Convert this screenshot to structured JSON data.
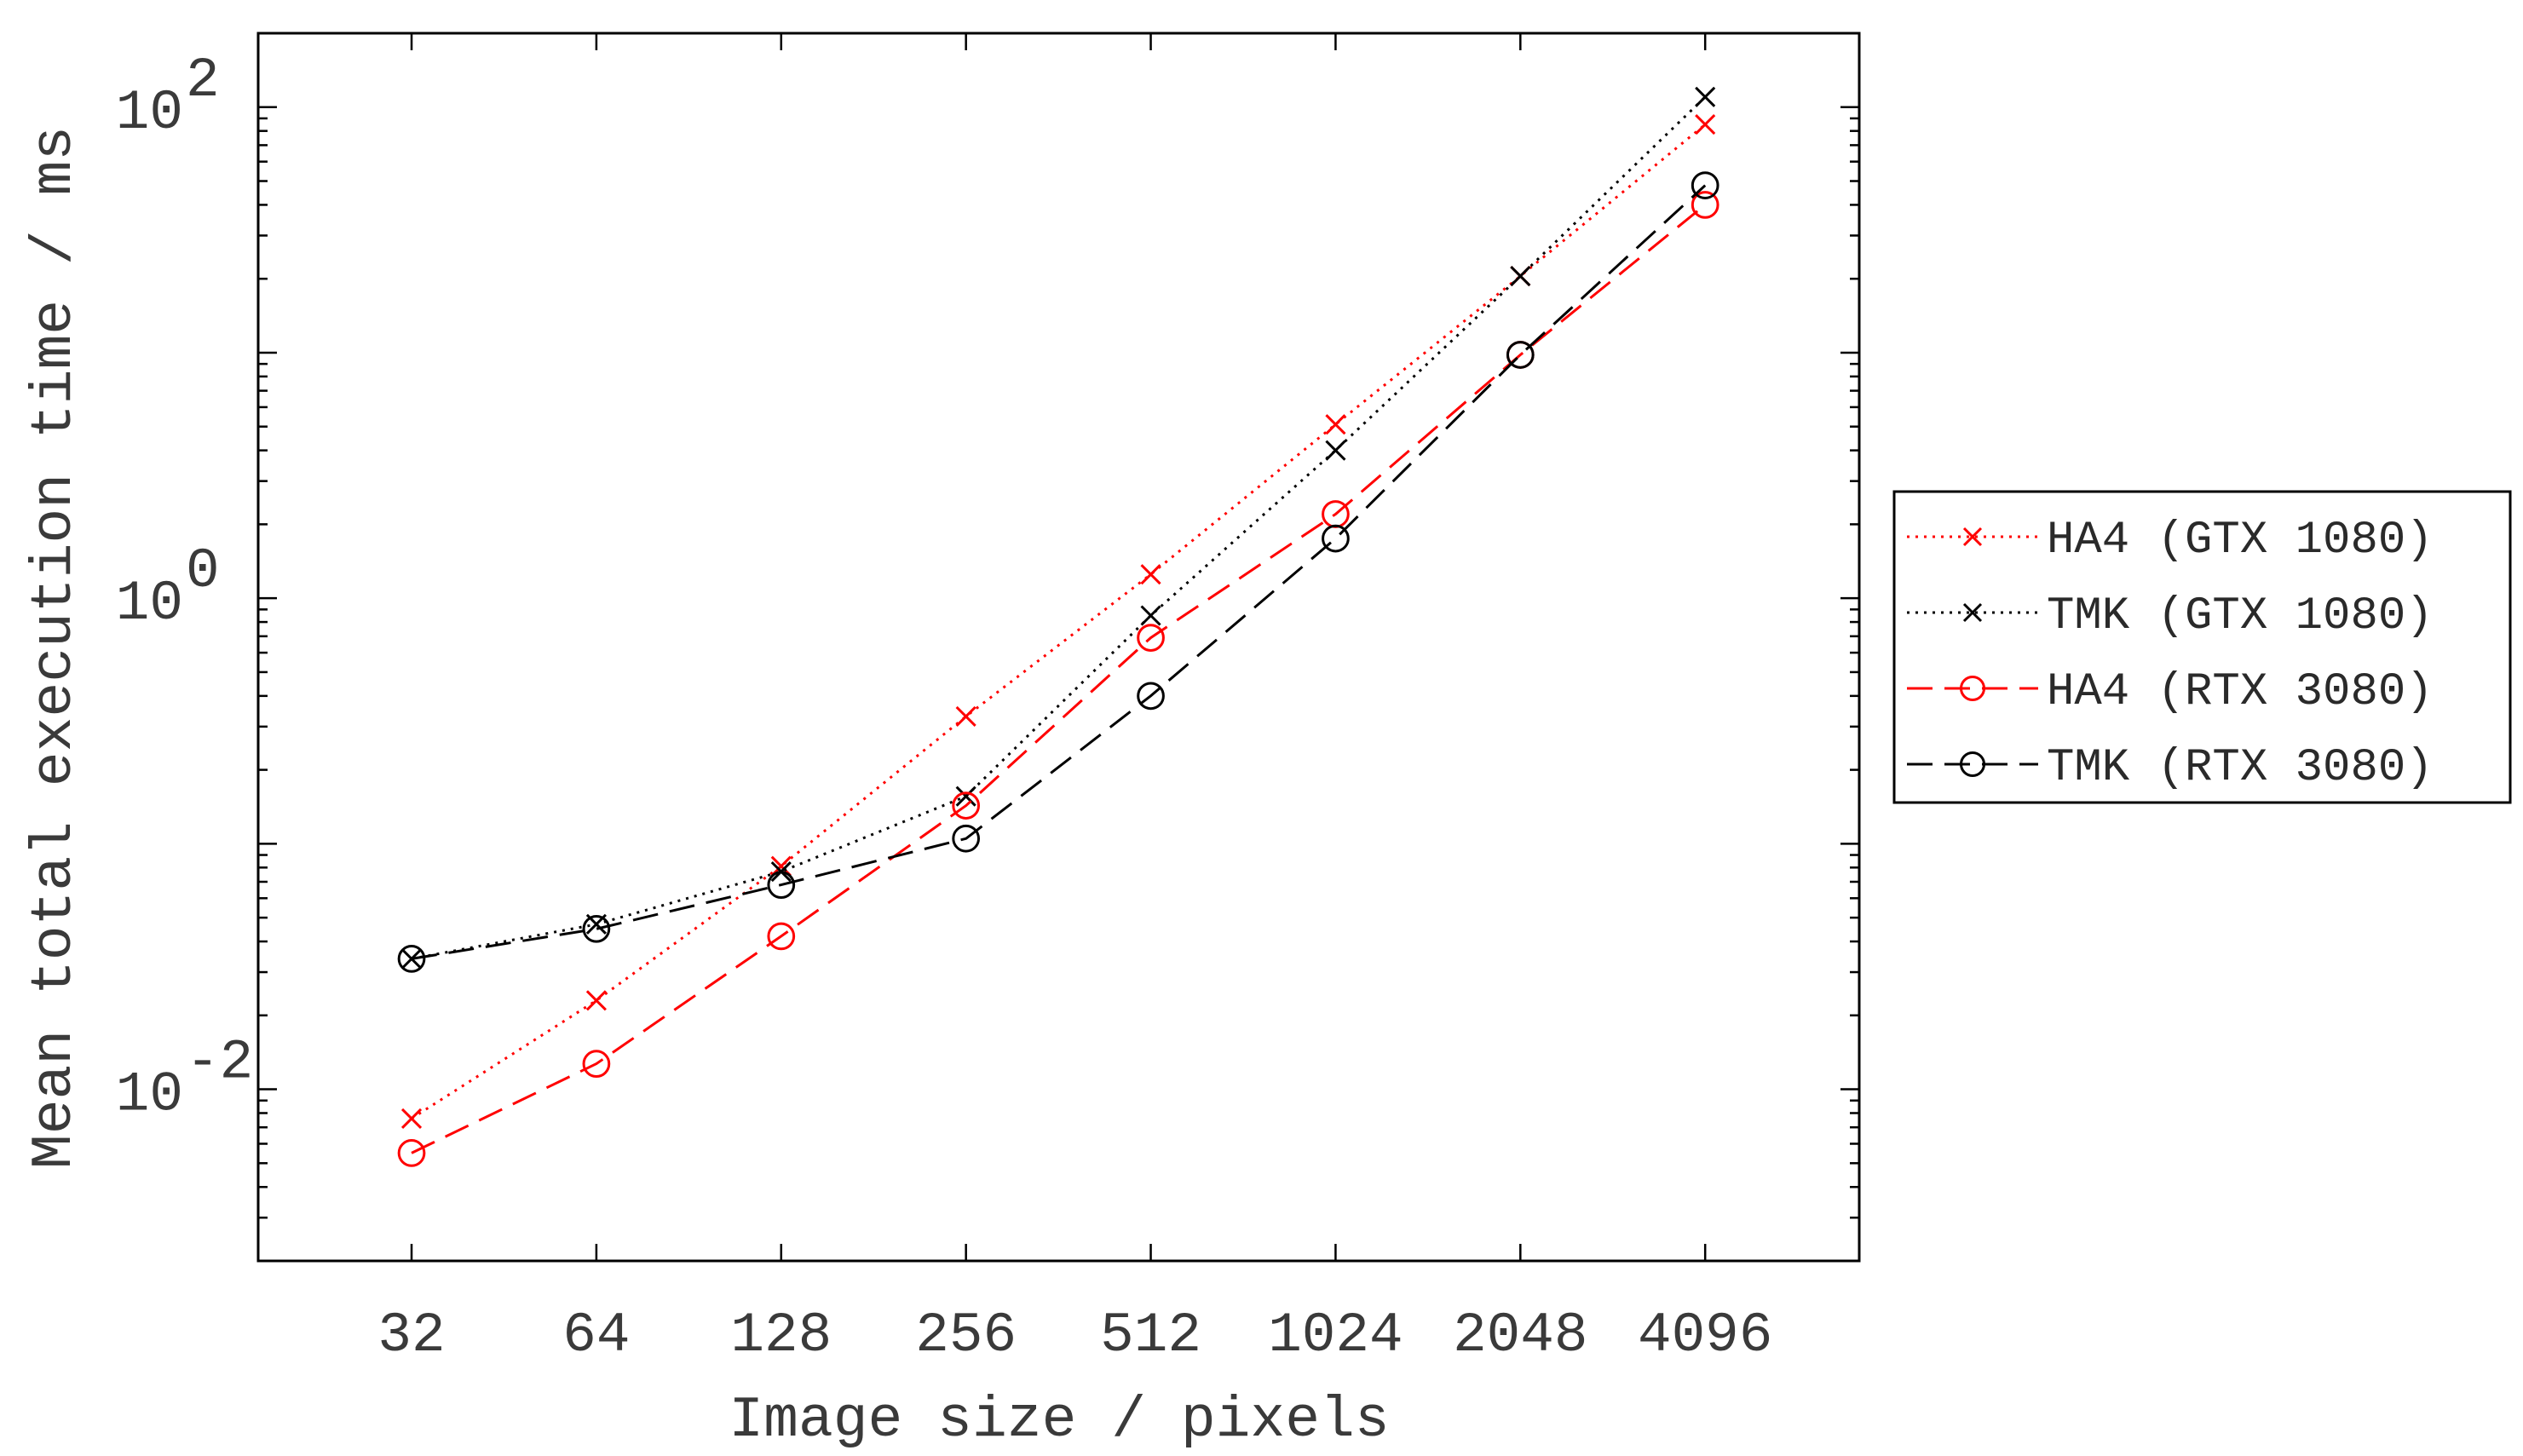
{
  "chart_data": {
    "type": "line",
    "xlabel": "Image size / pixels",
    "ylabel": "Mean total execution time / ms",
    "x_scale": "log2",
    "y_scale": "log10",
    "x": [
      32,
      64,
      128,
      256,
      512,
      1024,
      2048,
      4096
    ],
    "x_tick_labels": [
      "32",
      "64",
      "128",
      "256",
      "512",
      "1024",
      "2048",
      "4096"
    ],
    "xlim": [
      18,
      7300
    ],
    "ylim": [
      0.002,
      200
    ],
    "y_ticks": [
      {
        "value": 0.01,
        "base": "10",
        "exp": "-2"
      },
      {
        "value": 1,
        "base": "10",
        "exp": "0"
      },
      {
        "value": 100,
        "base": "10",
        "exp": "2"
      }
    ],
    "grid": false,
    "legend_position": "right",
    "series": [
      {
        "name": "HA4 (GTX 1080)",
        "color": "#ff0000",
        "marker": "x",
        "line": "dotted",
        "values": [
          0.0076,
          0.023,
          0.081,
          0.33,
          1.25,
          5.1,
          20.5,
          85
        ]
      },
      {
        "name": "TMK (GTX 1080)",
        "color": "#000000",
        "marker": "x",
        "line": "dotted",
        "values": [
          0.034,
          0.047,
          0.077,
          0.156,
          0.85,
          4.0,
          20.5,
          110
        ]
      },
      {
        "name": "HA4 (RTX 3080)",
        "color": "#ff0000",
        "marker": "o",
        "line": "dashed",
        "values": [
          0.0055,
          0.0127,
          0.042,
          0.143,
          0.69,
          2.2,
          9.8,
          40
        ]
      },
      {
        "name": "TMK (RTX 3080)",
        "color": "#000000",
        "marker": "o",
        "line": "dashed",
        "values": [
          0.034,
          0.045,
          0.068,
          0.105,
          0.4,
          1.75,
          9.8,
          48
        ]
      }
    ]
  }
}
